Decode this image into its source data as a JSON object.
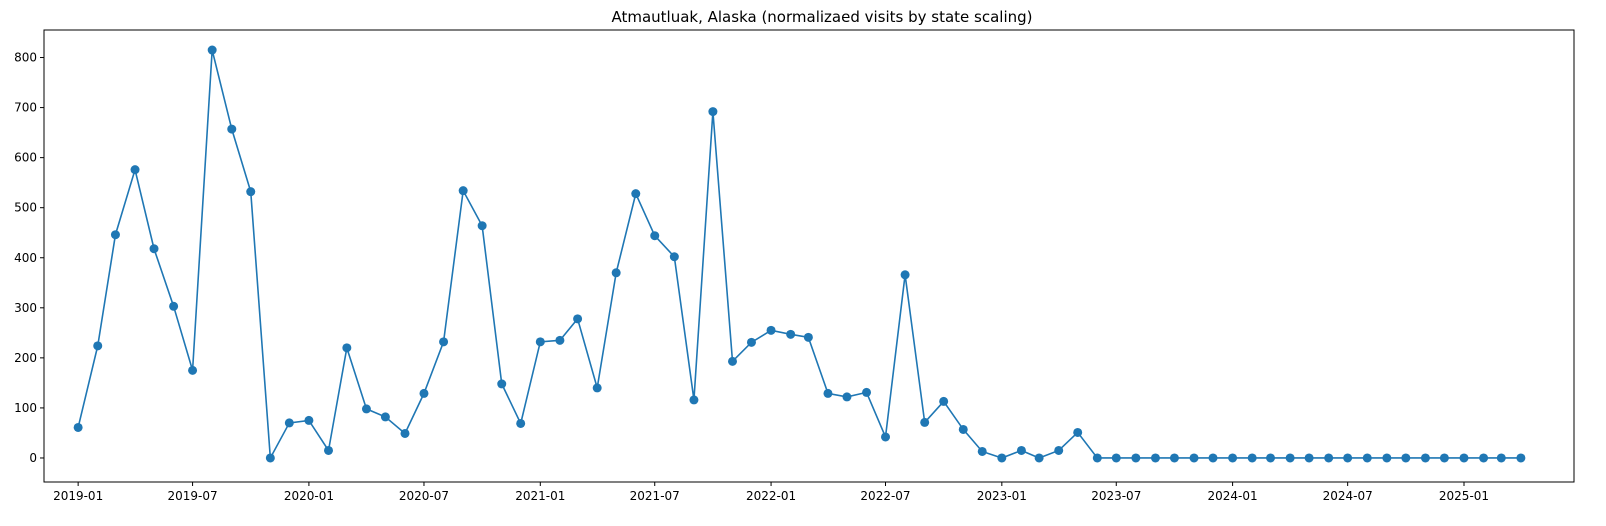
{
  "chart_data": {
    "type": "line",
    "title": "Atmautluak, Alaska (normalizaed visits by state scaling)",
    "xlabel": "",
    "ylabel": "",
    "x_tick_labels": [
      "2019-01",
      "2019-07",
      "2020-01",
      "2020-07",
      "2021-01",
      "2021-07",
      "2022-01",
      "2022-07",
      "2023-01",
      "2023-07",
      "2024-01",
      "2024-07",
      "2025-01"
    ],
    "y_ticks": [
      0,
      100,
      200,
      300,
      400,
      500,
      600,
      700,
      800
    ],
    "ylim": [
      -48,
      855
    ],
    "xlim": [
      "2018-11-08",
      "2025-06-24"
    ],
    "grid": false,
    "legend": "none",
    "color": "#1f77b4",
    "marker": "circle",
    "series": [
      {
        "x": [
          "2019-01",
          "2019-02",
          "2019-03",
          "2019-04",
          "2019-05",
          "2019-06",
          "2019-07",
          "2019-08",
          "2019-09",
          "2019-10",
          "2019-11",
          "2019-12",
          "2020-01",
          "2020-02",
          "2020-03",
          "2020-04",
          "2020-05",
          "2020-06",
          "2020-07",
          "2020-08",
          "2020-09",
          "2020-10",
          "2020-11",
          "2020-12",
          "2021-01",
          "2021-02",
          "2021-03",
          "2021-04",
          "2021-05",
          "2021-06",
          "2021-07",
          "2021-08",
          "2021-09",
          "2021-10",
          "2021-11",
          "2021-12",
          "2022-01",
          "2022-02",
          "2022-03",
          "2022-04",
          "2022-05",
          "2022-06",
          "2022-07",
          "2022-08",
          "2022-09",
          "2022-10",
          "2022-11",
          "2022-12",
          "2023-01",
          "2023-02",
          "2023-03",
          "2023-04",
          "2023-05",
          "2023-06",
          "2023-07",
          "2023-08",
          "2023-09",
          "2023-10",
          "2023-11",
          "2023-12",
          "2024-01",
          "2024-02",
          "2024-03",
          "2024-04",
          "2024-05",
          "2024-06",
          "2024-07",
          "2024-08",
          "2024-09",
          "2024-10",
          "2024-11",
          "2024-12",
          "2025-01",
          "2025-02",
          "2025-03",
          "2025-04"
        ],
        "values": [
          61,
          224,
          446,
          576,
          418,
          303,
          175,
          815,
          657,
          532,
          0,
          70,
          75,
          15,
          220,
          98,
          82,
          49,
          129,
          232,
          534,
          464,
          148,
          69,
          232,
          235,
          278,
          140,
          370,
          528,
          444,
          402,
          116,
          692,
          193,
          231,
          255,
          247,
          241,
          129,
          122,
          131,
          42,
          366,
          71,
          113,
          57,
          13,
          0,
          15,
          0,
          15,
          51,
          0,
          0,
          0,
          0,
          0,
          0,
          0,
          0,
          0,
          0,
          0,
          0,
          0,
          0,
          0,
          0,
          0,
          0,
          0,
          0,
          0,
          0,
          0
        ]
      }
    ]
  }
}
